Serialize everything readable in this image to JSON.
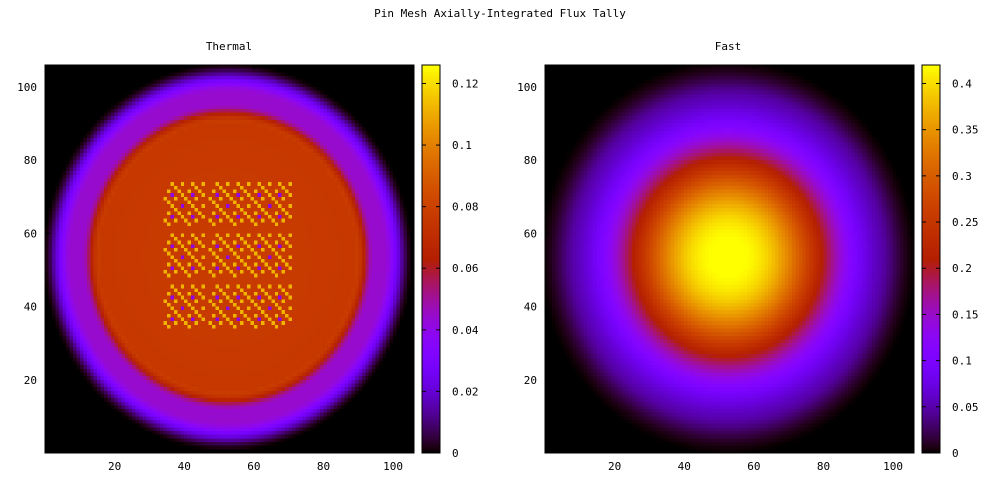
{
  "figure": {
    "title": "Pin Mesh Axially-Integrated Flux Tally"
  },
  "chart_data": [
    {
      "type": "heatmap",
      "title": "Thermal",
      "xlim": [
        0,
        106
      ],
      "ylim": [
        0,
        106
      ],
      "xticks": [
        20,
        40,
        60,
        80,
        100
      ],
      "yticks": [
        20,
        40,
        60,
        80,
        100
      ],
      "colorbar": {
        "min": 0,
        "max": 0.126,
        "ticks": [
          0,
          0.02,
          0.04,
          0.06,
          0.08,
          0.1,
          0.12
        ],
        "tick_labels": [
          "0",
          "0.02",
          "0.04",
          "0.06",
          "0.08",
          "0.1",
          "0.12"
        ],
        "colormap": "gnuplot"
      },
      "grid": false,
      "description_values": {
        "center_x": 52.5,
        "center_y": 53.5,
        "core_level": 0.078,
        "reflector_level": 0.044,
        "outer_radius": 52,
        "core_radius": 37,
        "hot_pin_level": 0.112,
        "guide_tube_level": 0.04
      }
    },
    {
      "type": "heatmap",
      "title": "Fast",
      "xlim": [
        0,
        106
      ],
      "ylim": [
        0,
        106
      ],
      "xticks": [
        20,
        40,
        60,
        80,
        100
      ],
      "yticks": [
        20,
        40,
        60,
        80,
        100
      ],
      "colorbar": {
        "min": 0,
        "max": 0.42,
        "ticks": [
          0,
          0.05,
          0.1,
          0.15,
          0.2,
          0.25,
          0.3,
          0.35,
          0.4
        ],
        "tick_labels": [
          "0",
          "0.05",
          "0.1",
          "0.15",
          "0.2",
          "0.25",
          "0.3",
          "0.35",
          "0.4"
        ],
        "colormap": "gnuplot"
      },
      "grid": false,
      "description_values": {
        "center_x": 52.5,
        "center_y": 53.5,
        "peak_level": 0.4,
        "edge_level": 0.12,
        "outer_radius": 52
      }
    }
  ]
}
